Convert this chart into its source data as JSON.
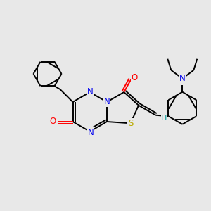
{
  "bg_color": "#e8e8e8",
  "bond_color": "#000000",
  "atom_colors": {
    "N": "#0000ee",
    "O": "#ff0000",
    "S": "#bbaa00",
    "H": "#009999",
    "C": "#000000"
  },
  "figsize": [
    3.0,
    3.0
  ],
  "dpi": 100
}
